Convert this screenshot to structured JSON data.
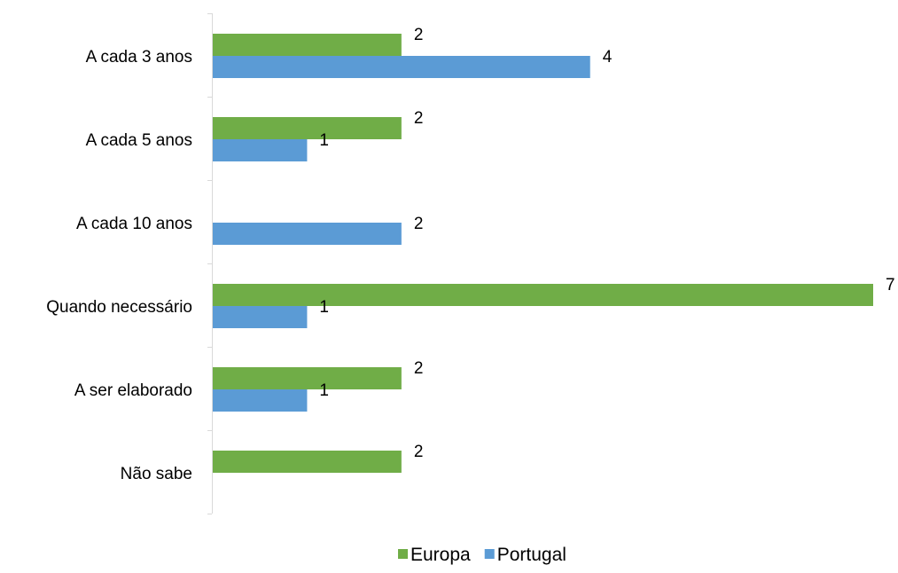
{
  "chart_data": {
    "type": "bar",
    "orientation": "horizontal",
    "categories": [
      "A cada 3 anos",
      "A cada 5 anos",
      "A cada 10 anos",
      "Quando necessário",
      "A ser elaborado",
      "Não sabe"
    ],
    "series": [
      {
        "name": "Europa",
        "color": "#70AD47",
        "values": [
          2,
          2,
          null,
          7,
          2,
          2
        ]
      },
      {
        "name": "Portugal",
        "color": "#5B9BD5",
        "values": [
          4,
          1,
          2,
          1,
          1,
          null
        ]
      }
    ],
    "xlim": [
      0,
      7
    ],
    "grid": false,
    "data_labels": true,
    "legend_position": "bottom-center"
  }
}
